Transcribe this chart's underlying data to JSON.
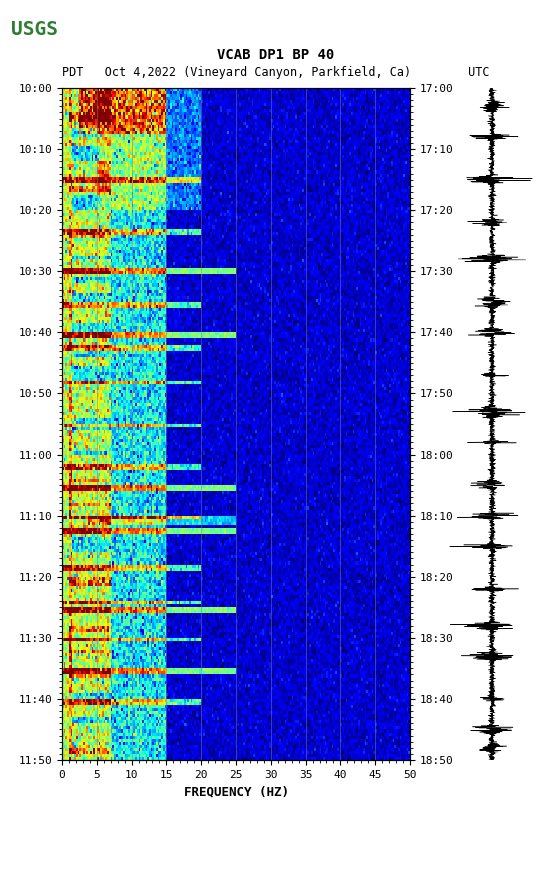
{
  "title_line1": "VCAB DP1 BP 40",
  "title_line2": "PDT   Oct 4,2022 (Vineyard Canyon, Parkfield, Ca)        UTC",
  "xlabel": "FREQUENCY (HZ)",
  "xlim": [
    0,
    50
  ],
  "left_time_labels": [
    "10:00",
    "10:10",
    "10:20",
    "10:30",
    "10:40",
    "10:50",
    "11:00",
    "11:10",
    "11:20",
    "11:30",
    "11:40",
    "11:50"
  ],
  "right_time_labels": [
    "17:00",
    "17:10",
    "17:20",
    "17:30",
    "17:40",
    "17:50",
    "18:00",
    "18:10",
    "18:20",
    "18:30",
    "18:40",
    "18:50"
  ],
  "xticks": [
    0,
    5,
    10,
    15,
    20,
    25,
    30,
    35,
    40,
    45,
    50
  ],
  "vertical_grid_freqs": [
    5,
    10,
    15,
    20,
    25,
    30,
    35,
    40,
    45
  ],
  "background_color": "#000080",
  "fig_bg": "#ffffff",
  "usgs_green": "#2e7d32",
  "seed": 42
}
